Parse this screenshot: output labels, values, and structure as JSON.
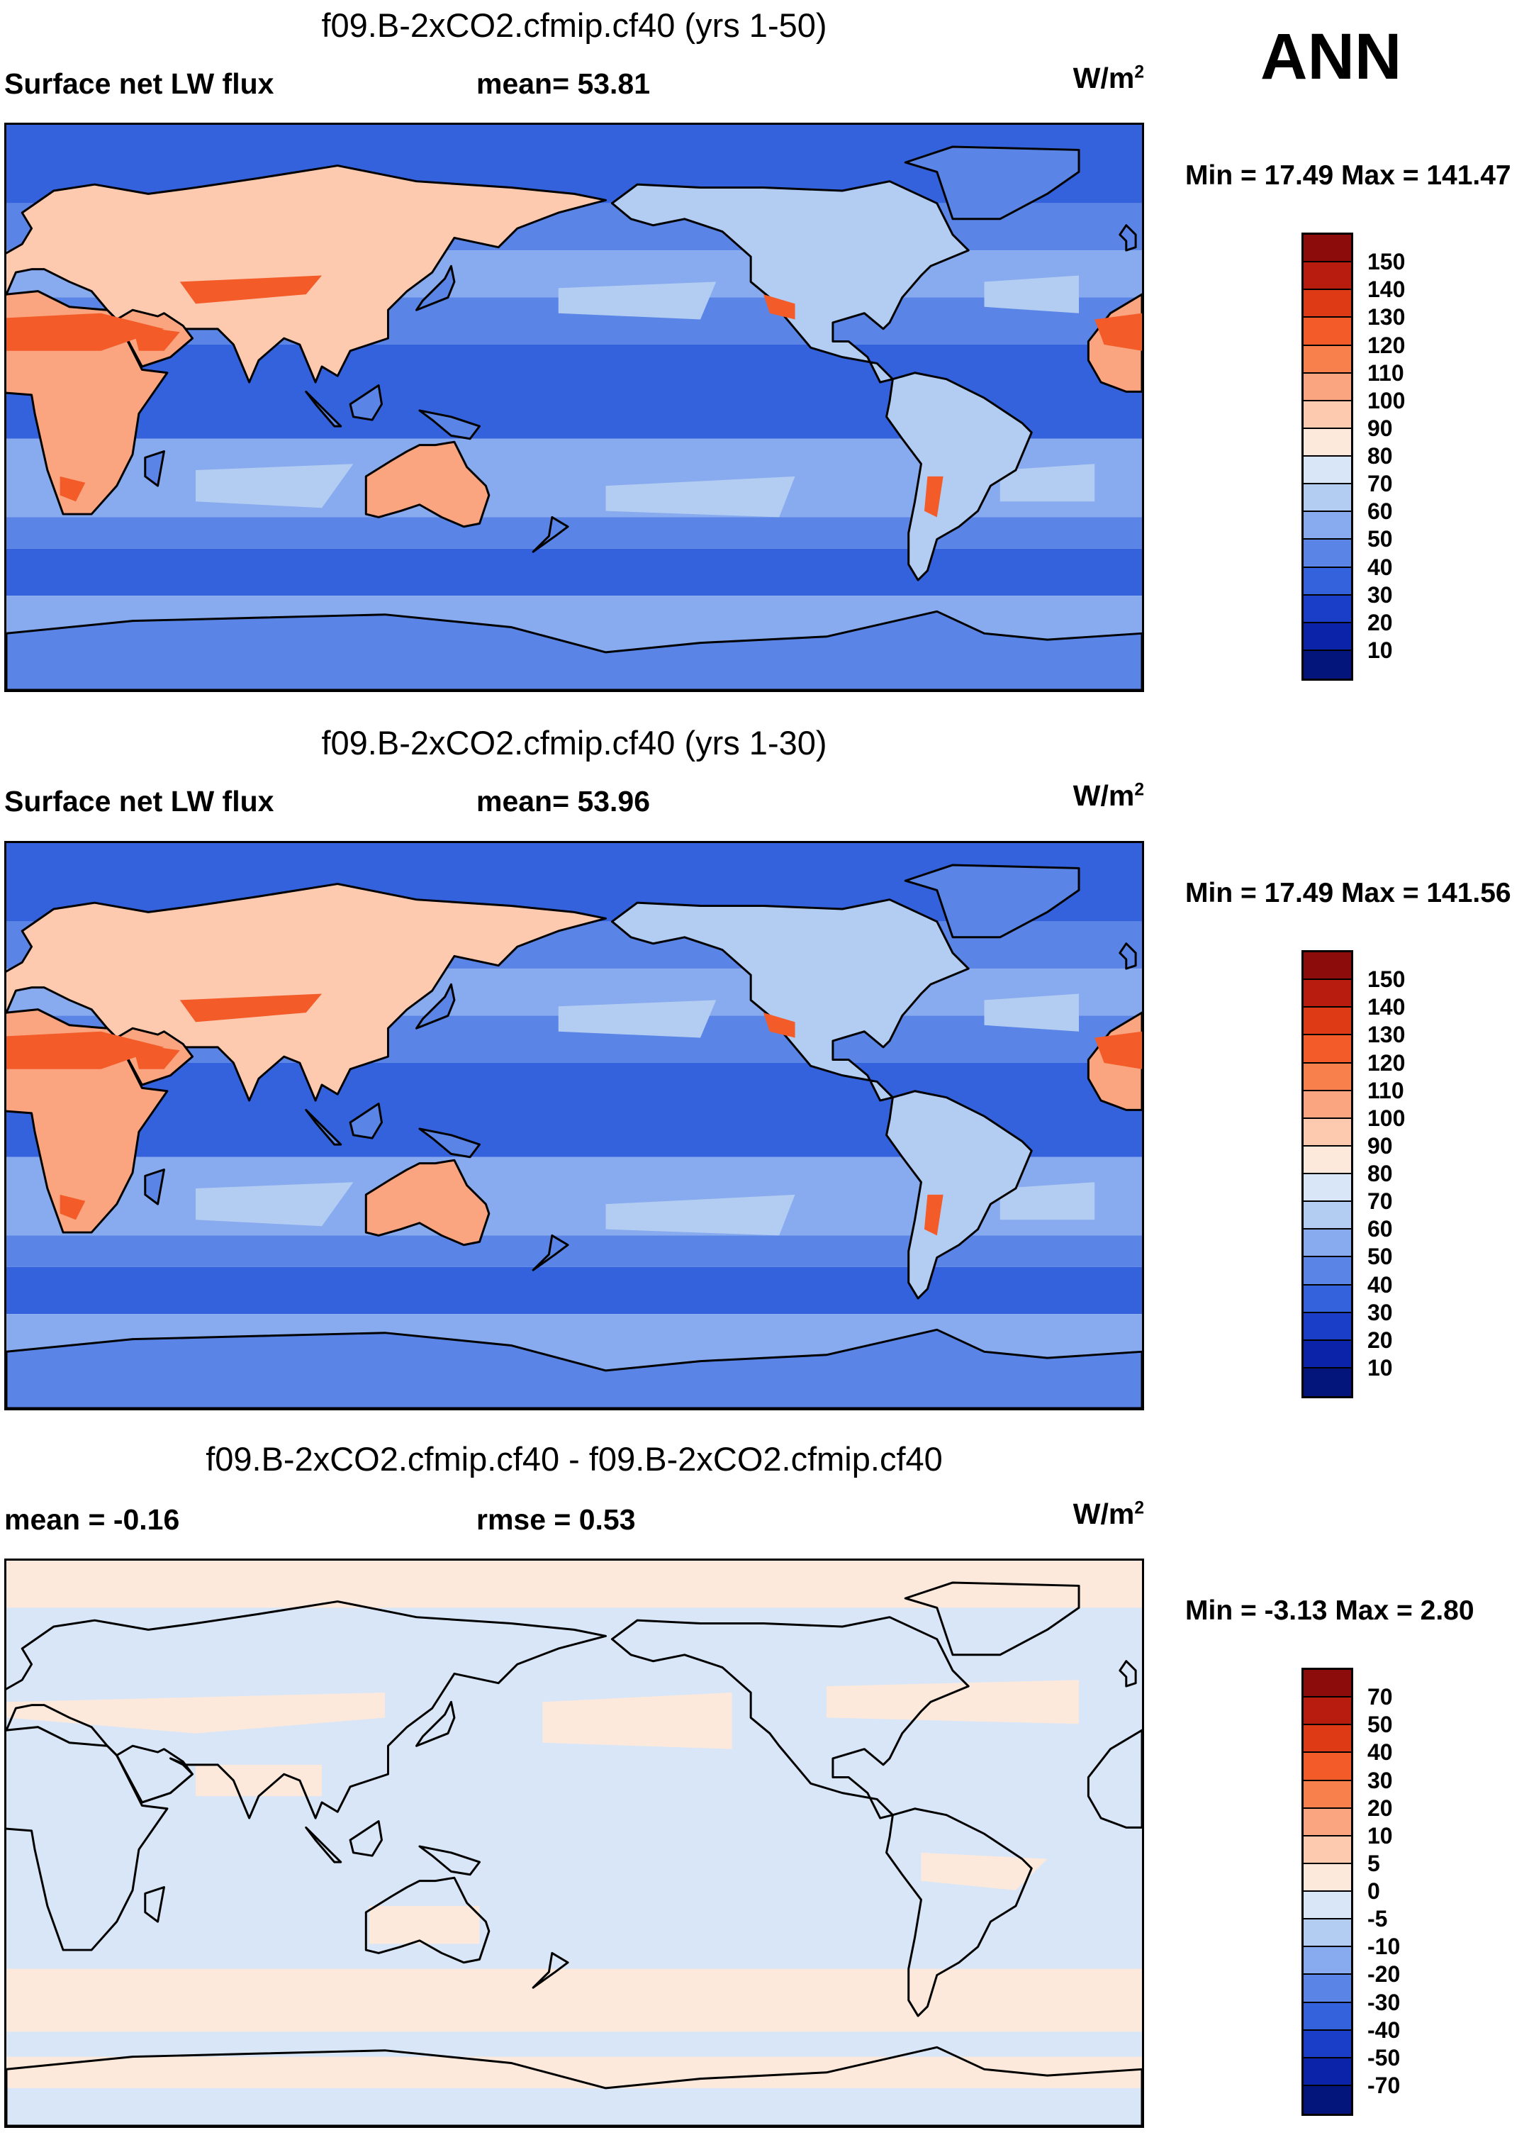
{
  "season_label": "ANN",
  "panels": [
    {
      "title": "f09.B-2xCO2.cfmip.cf40 (yrs 1-50)",
      "left_label": "Surface net LW flux",
      "center_label": "mean=  53.81",
      "units_base": "W/m",
      "units_exp": "2",
      "minmax": "Min =  17.49 Max = 141.47",
      "colorbar_labels": [
        "150",
        "140",
        "130",
        "120",
        "110",
        "100",
        "90",
        "80",
        "70",
        "60",
        "50",
        "40",
        "30",
        "20",
        "10"
      ],
      "colorbar_colors": [
        "#8c0c0c",
        "#b81c0e",
        "#de3a16",
        "#f35b28",
        "#f7804c",
        "#fba480",
        "#fdcab0",
        "#fde9dc",
        "#d8e6f7",
        "#b2ccf2",
        "#88aaee",
        "#5a85e6",
        "#3462dc",
        "#1a3ec8",
        "#0a23a8",
        "#03147a"
      ]
    },
    {
      "title": "f09.B-2xCO2.cfmip.cf40 (yrs 1-30)",
      "left_label": "Surface net LW flux",
      "center_label": "mean=  53.96",
      "units_base": "W/m",
      "units_exp": "2",
      "minmax": "Min =  17.49 Max = 141.56",
      "colorbar_labels": [
        "150",
        "140",
        "130",
        "120",
        "110",
        "100",
        "90",
        "80",
        "70",
        "60",
        "50",
        "40",
        "30",
        "20",
        "10"
      ],
      "colorbar_colors": [
        "#8c0c0c",
        "#b81c0e",
        "#de3a16",
        "#f35b28",
        "#f7804c",
        "#fba480",
        "#fdcab0",
        "#fde9dc",
        "#d8e6f7",
        "#b2ccf2",
        "#88aaee",
        "#5a85e6",
        "#3462dc",
        "#1a3ec8",
        "#0a23a8",
        "#03147a"
      ]
    },
    {
      "title": "f09.B-2xCO2.cfmip.cf40 - f09.B-2xCO2.cfmip.cf40",
      "left_label": "mean =  -0.16",
      "center_label": "rmse =   0.53",
      "units_base": "W/m",
      "units_exp": "2",
      "minmax": "Min =  -3.13 Max =   2.80",
      "colorbar_labels": [
        "70",
        "50",
        "40",
        "30",
        "20",
        "10",
        "5",
        "0",
        "-5",
        "-10",
        "-20",
        "-30",
        "-40",
        "-50",
        "-70"
      ],
      "colorbar_colors": [
        "#8c0c0c",
        "#b81c0e",
        "#de3a16",
        "#f35b28",
        "#f7804c",
        "#fba480",
        "#fdcab0",
        "#fde9dc",
        "#d8e6f7",
        "#b2ccf2",
        "#88aaee",
        "#5a85e6",
        "#3462dc",
        "#1a3ec8",
        "#0a23a8",
        "#03147a"
      ]
    }
  ],
  "map_colors": {
    "ocean_deep": "#3462dc",
    "ocean_mid": "#5a85e6",
    "ocean_light": "#88aaee",
    "ocean_pale": "#b2ccf2",
    "land_warm": "#fba480",
    "land_hot": "#f35b28",
    "land_pale": "#fdcab0",
    "diff_pos": "#fde9dc",
    "diff_neg": "#d8e6f7",
    "coast": "#000000"
  }
}
